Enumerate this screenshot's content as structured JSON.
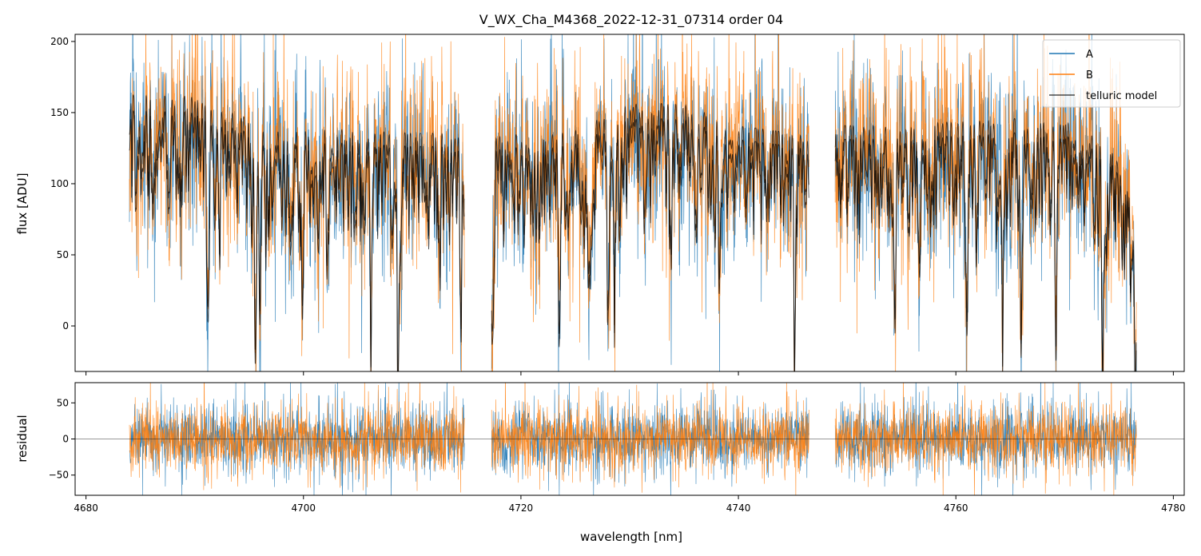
{
  "chart_data": {
    "type": "line",
    "title": "V_WX_Cha_M4368_2022-12-31_07314  order 04",
    "xlabel": "wavelength [nm]",
    "xlim": [
      4679,
      4781
    ],
    "x_ticks": [
      4680,
      4700,
      4720,
      4740,
      4760,
      4780
    ],
    "x_tick_labels": [
      "4680",
      "4700",
      "4720",
      "4740",
      "4760",
      "4780"
    ],
    "x_tick_labels_shown_on": "bottom panel only",
    "x_segments": [
      [
        4684.0,
        4714.8
      ],
      [
        4717.3,
        4746.5
      ],
      [
        4748.9,
        4776.6
      ]
    ],
    "panels": [
      {
        "id": "flux",
        "ylabel": "flux [ADU]",
        "ylim": [
          -32,
          205
        ],
        "y_ticks": [
          0,
          50,
          100,
          150,
          200
        ],
        "y_tick_labels": [
          "0",
          "50",
          "100",
          "150",
          "200"
        ],
        "series": [
          {
            "name": "A",
            "color": "#1f77b4",
            "kind": "noisy spectrum",
            "typical_level": 130,
            "noise_sd": 28
          },
          {
            "name": "B",
            "color": "#ff7f0e",
            "kind": "noisy spectrum",
            "typical_level": 135,
            "noise_sd": 28
          },
          {
            "name": "telluric model",
            "color": "#000000",
            "kind": "smooth model",
            "typical_level": 130
          }
        ],
        "continuum_points": [
          [
            4684,
            156
          ],
          [
            4690,
            155
          ],
          [
            4692,
            148
          ],
          [
            4695,
            140
          ],
          [
            4697,
            132
          ],
          [
            4700,
            135
          ],
          [
            4705,
            132
          ],
          [
            4710,
            130
          ],
          [
            4714.8,
            130
          ],
          [
            4717.3,
            128
          ],
          [
            4725,
            132
          ],
          [
            4730,
            150
          ],
          [
            4735,
            150
          ],
          [
            4740,
            135
          ],
          [
            4745,
            130
          ],
          [
            4746.5,
            128
          ],
          [
            4748.9,
            135
          ],
          [
            4755,
            136
          ],
          [
            4760,
            138
          ],
          [
            4765,
            140
          ],
          [
            4770,
            138
          ],
          [
            4774,
            125
          ],
          [
            4776.6,
            80
          ]
        ],
        "absorption_lines": [
          [
            4691.2,
            140
          ],
          [
            4695.6,
            115
          ],
          [
            4696.0,
            120
          ],
          [
            4699.9,
            125
          ],
          [
            4706.2,
            110
          ],
          [
            4708.7,
            115
          ],
          [
            4714.5,
            95
          ],
          [
            4717.4,
            100
          ],
          [
            4723.5,
            85
          ],
          [
            4726.2,
            80
          ],
          [
            4728.0,
            115
          ],
          [
            4728.6,
            95
          ],
          [
            4733.8,
            85
          ],
          [
            4738.3,
            80
          ],
          [
            4745.2,
            125
          ],
          [
            4754.4,
            120
          ],
          [
            4756.7,
            90
          ],
          [
            4761.0,
            90
          ],
          [
            4764.3,
            105
          ],
          [
            4766.0,
            110
          ],
          [
            4769.2,
            120
          ],
          [
            4773.5,
            110
          ],
          [
            4776.5,
            110
          ]
        ],
        "legend": {
          "position": "top-right",
          "entries": [
            "A",
            "B",
            "telluric model"
          ]
        }
      },
      {
        "id": "residual",
        "ylabel": "residual",
        "ylim": [
          -78,
          78
        ],
        "y_ticks": [
          -50,
          0,
          50
        ],
        "y_tick_labels": [
          "−50",
          "0",
          "50"
        ],
        "zero_line": 0,
        "series": [
          {
            "name": "A",
            "color": "#1f77b4",
            "kind": "noisy residual",
            "typical_level": 0,
            "noise_sd": 26
          },
          {
            "name": "B",
            "color": "#ff7f0e",
            "kind": "noisy residual",
            "typical_level": 0,
            "noise_sd": 26
          }
        ]
      }
    ]
  }
}
